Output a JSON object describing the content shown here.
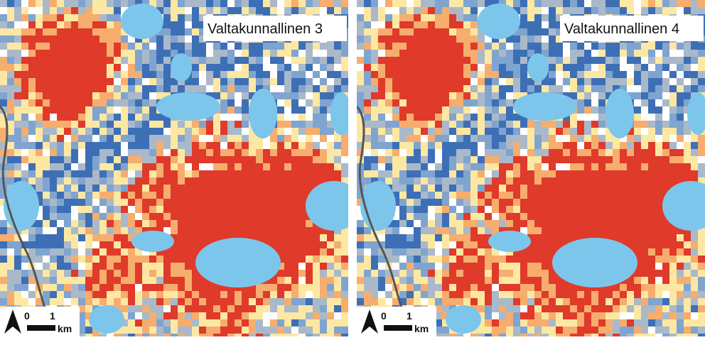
{
  "panels": [
    {
      "label": "Valtakunnallinen 3",
      "scale": {
        "start": "0",
        "end": "1",
        "unit": "km"
      }
    },
    {
      "label": "Valtakunnallinen 4",
      "scale": {
        "start": "0",
        "end": "1",
        "unit": "km"
      }
    }
  ]
}
